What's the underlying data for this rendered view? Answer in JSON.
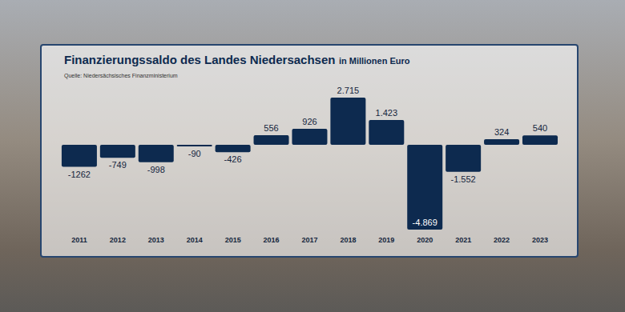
{
  "chart_data": {
    "type": "bar",
    "title": "Finanzierungssaldo des Landes Niedersachsen",
    "subtitle": "in Millionen Euro",
    "annotations": [
      "Quelle: Niedersächsisches Finanzministerium"
    ],
    "categories": [
      "2011",
      "2012",
      "2013",
      "2014",
      "2015",
      "2016",
      "2017",
      "2018",
      "2019",
      "2020",
      "2021",
      "2022",
      "2023"
    ],
    "values": [
      -1262,
      -749,
      -998,
      -90,
      -426,
      556,
      926,
      2715,
      1423,
      -4869,
      -1552,
      324,
      540
    ],
    "value_labels": [
      "-1262",
      "-749",
      "-998",
      "-90",
      "-426",
      "556",
      "926",
      "2.715",
      "1.423",
      "-4.869",
      "-1.552",
      "324",
      "540"
    ],
    "color": "#0d2a4f",
    "data_labels": true,
    "tick_labels": "x",
    "grid": false
  }
}
